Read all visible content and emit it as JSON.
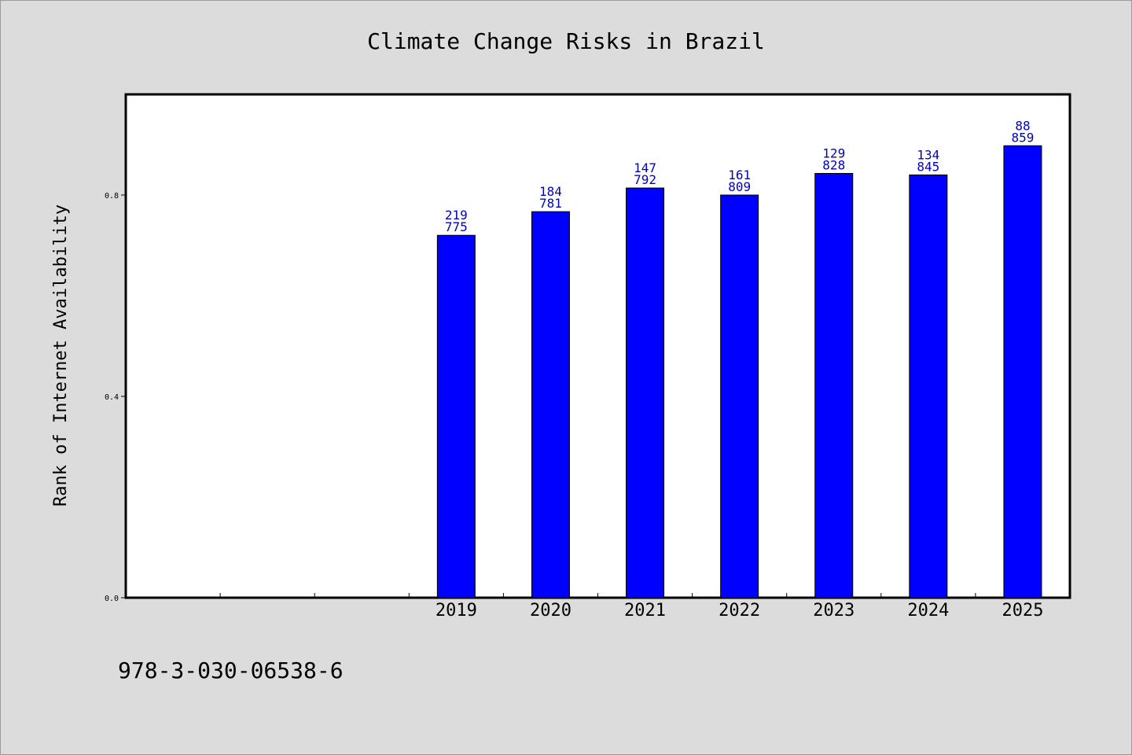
{
  "title": "Climate Change Risks in Brazil",
  "ylabel": "Rank of Internet Availability",
  "footer_id": "978-3-030-06538-6",
  "colors": {
    "background": "#dcdcdc",
    "plot_background": "#ffffff",
    "bar": "#0000ff",
    "bar_label": "#0000cc",
    "axis": "#000000"
  },
  "chart_data": {
    "type": "bar",
    "title": "Climate Change Risks in Brazil",
    "xlabel": "",
    "ylabel": "Rank of Internet Availability",
    "categories": [
      "2019",
      "2020",
      "2021",
      "2022",
      "2023",
      "2024",
      "2025"
    ],
    "values": [
      0.72,
      0.767,
      0.814,
      0.8,
      0.843,
      0.84,
      0.898
    ],
    "labels_top": [
      "219",
      "184",
      "147",
      "161",
      "129",
      "134",
      "88"
    ],
    "labels_bottom": [
      "775",
      "781",
      "792",
      "809",
      "828",
      "845",
      "859"
    ],
    "ylim": [
      0,
      1.0
    ],
    "yticks": [
      0.0,
      0.4,
      0.8
    ],
    "ytick_labels": [
      "0.0",
      "0.4",
      "0.8"
    ],
    "x_slots": 10,
    "first_category_slot": 3,
    "grid": false,
    "legend": "none"
  }
}
